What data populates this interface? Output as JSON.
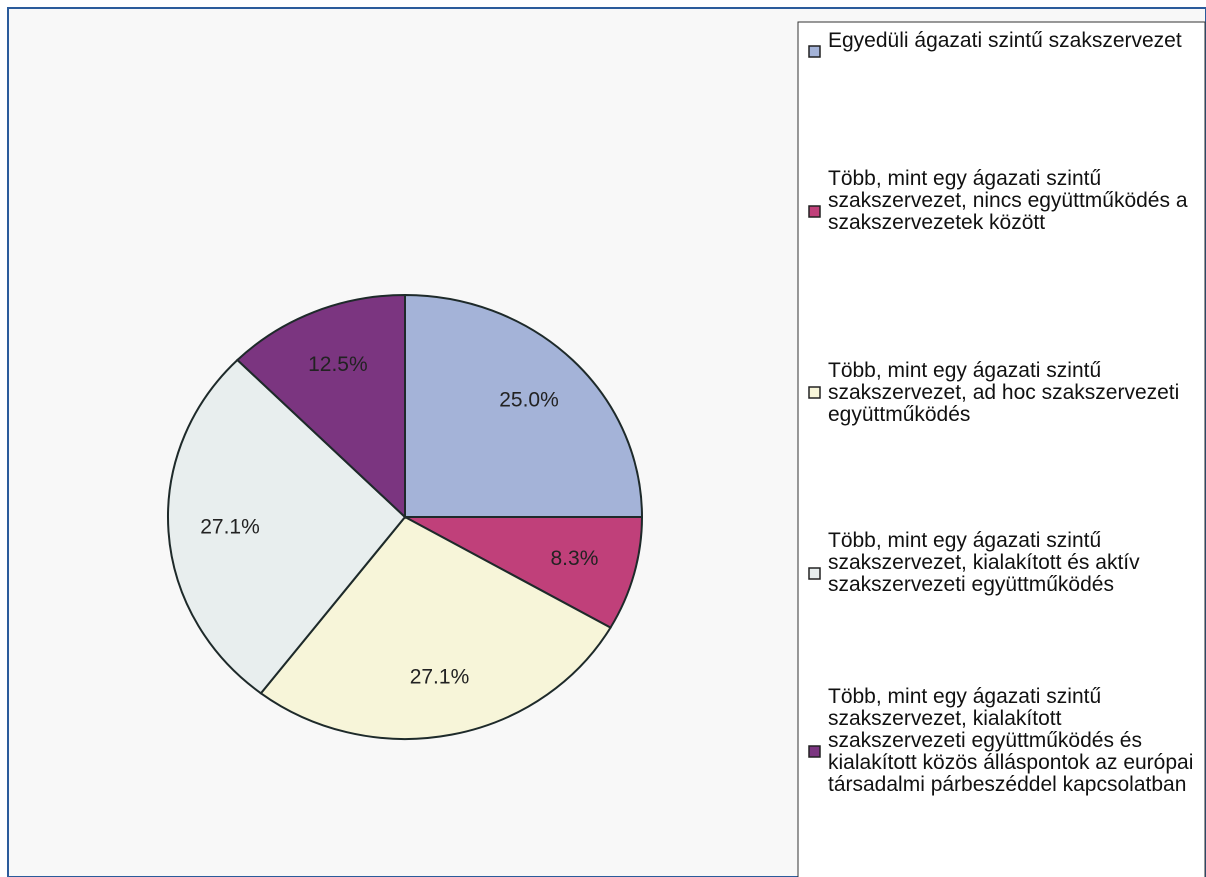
{
  "chart_data": {
    "type": "pie",
    "categories": [
      "Egyedüli ágazati szintű szakszervezet",
      "Több, mint egy ágazati szintű szakszervezet, nincs együttműködés a szakszervezetek között",
      "Több, mint egy ágazati szintű szakszervezet, ad hoc szakszervezeti együttműködés",
      "Több, mint egy ágazati szintű szakszervezet, kialakított és aktív szakszervezeti együttműködés",
      "Több, mint egy ágazati szintű szakszervezet, kialakított szakszervezeti együttműködés és kialakított közös álláspontok az európai társadalmi párbeszéddel kapcsolatban"
    ],
    "values": [
      25.0,
      8.3,
      27.1,
      27.1,
      12.5
    ],
    "value_labels": [
      "25.0%",
      "8.3%",
      "27.1%",
      "27.1%",
      "12.5%"
    ],
    "colors": [
      "#a4b3d8",
      "#c0407a",
      "#f7f5d9",
      "#e8eeee",
      "#7b3580"
    ],
    "legend": "right"
  }
}
